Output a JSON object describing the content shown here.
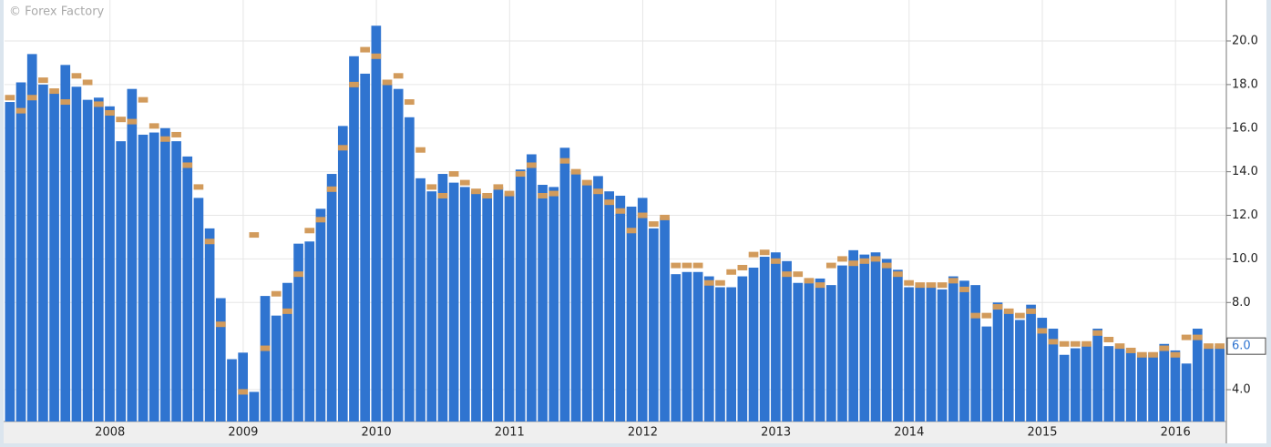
{
  "chart_data": {
    "type": "bar",
    "watermark": "© Forex Factory",
    "categories": [
      null,
      null,
      null,
      null,
      null,
      null,
      null,
      null,
      null,
      "2008",
      null,
      null,
      null,
      null,
      null,
      null,
      null,
      null,
      null,
      null,
      null,
      "2009",
      null,
      null,
      null,
      null,
      null,
      null,
      null,
      null,
      null,
      null,
      null,
      "2010",
      null,
      null,
      null,
      null,
      null,
      null,
      null,
      null,
      null,
      null,
      null,
      "2011",
      null,
      null,
      null,
      null,
      null,
      null,
      null,
      null,
      null,
      null,
      null,
      "2012",
      null,
      null,
      null,
      null,
      null,
      null,
      null,
      null,
      null,
      null,
      null,
      "2013",
      null,
      null,
      null,
      null,
      null,
      null,
      null,
      null,
      null,
      null,
      null,
      "2014",
      null,
      null,
      null,
      null,
      null,
      null,
      null,
      null,
      null,
      null,
      null,
      "2015",
      null,
      null,
      null,
      null,
      null,
      null,
      null,
      null,
      null,
      null,
      null,
      "2016",
      null,
      null,
      null,
      null
    ],
    "series": [
      {
        "color": "#2f74d0",
        "values": [
          17.2,
          18.1,
          19.4,
          18.0,
          17.6,
          18.9,
          17.9,
          17.3,
          17.4,
          17.0,
          15.4,
          17.8,
          15.7,
          15.8,
          16.0,
          15.4,
          14.7,
          12.8,
          11.4,
          8.2,
          5.4,
          5.7,
          3.9,
          8.3,
          7.4,
          8.9,
          10.7,
          10.8,
          12.3,
          13.9,
          16.1,
          19.3,
          18.5,
          20.7,
          18.0,
          17.8,
          16.5,
          13.7,
          13.1,
          13.9,
          13.5,
          13.3,
          13.1,
          12.9,
          13.3,
          13.0,
          14.1,
          14.8,
          13.4,
          13.3,
          15.1,
          14.0,
          13.6,
          13.8,
          13.1,
          12.9,
          12.4,
          12.8,
          11.4,
          11.9,
          9.3,
          9.4,
          9.4,
          9.2,
          8.7,
          8.7,
          9.2,
          9.6,
          10.1,
          10.3,
          9.9,
          8.9,
          9.1,
          9.1,
          8.8,
          9.7,
          10.4,
          10.2,
          10.3,
          10.0,
          9.5,
          8.7,
          8.8,
          8.7,
          8.6,
          9.2,
          9.0,
          8.8,
          6.9,
          8.0,
          7.6,
          7.2,
          7.9,
          7.3,
          6.8,
          5.6,
          5.9,
          6.1,
          6.8,
          6.0,
          5.9,
          5.8,
          5.6,
          5.7,
          6.1,
          5.8,
          5.2,
          6.8,
          5.9,
          6.0
        ]
      },
      {
        "color": "#d29b5c",
        "marker": true,
        "values": [
          17.4,
          16.8,
          17.4,
          18.2,
          17.7,
          17.2,
          18.4,
          18.1,
          17.1,
          16.7,
          16.4,
          16.3,
          17.3,
          16.1,
          15.5,
          15.7,
          14.3,
          13.3,
          10.8,
          7.0,
          null,
          3.9,
          11.1,
          5.9,
          8.4,
          7.6,
          9.3,
          11.3,
          11.8,
          13.2,
          15.1,
          18.0,
          19.6,
          19.3,
          18.1,
          18.4,
          17.2,
          15.0,
          13.3,
          12.9,
          13.9,
          13.5,
          13.1,
          12.9,
          13.3,
          13.0,
          13.9,
          14.3,
          12.9,
          13.0,
          14.5,
          14.0,
          13.5,
          13.1,
          12.6,
          12.2,
          11.3,
          12.0,
          11.6,
          11.9,
          9.7,
          9.7,
          9.7,
          8.9,
          8.9,
          9.4,
          9.6,
          10.2,
          10.3,
          9.9,
          9.3,
          9.3,
          9.0,
          8.8,
          9.7,
          10.0,
          9.8,
          9.9,
          10.0,
          9.7,
          9.3,
          8.9,
          8.8,
          8.8,
          8.8,
          9.0,
          8.6,
          7.4,
          7.4,
          7.8,
          7.6,
          7.4,
          7.6,
          6.7,
          6.2,
          6.1,
          6.1,
          6.1,
          6.6,
          6.3,
          6.0,
          5.8,
          5.6,
          5.6,
          5.9,
          5.6,
          6.4,
          6.4,
          6.0,
          6.0
        ]
      }
    ],
    "ylim": [
      2.54,
      21.88
    ],
    "yticks": [
      {
        "value": 4,
        "label": "4.0"
      },
      {
        "value": 8,
        "label": "8.0"
      },
      {
        "value": 10,
        "label": "10.0"
      },
      {
        "value": 12,
        "label": "12.0"
      },
      {
        "value": 14,
        "label": "14.0"
      },
      {
        "value": 16,
        "label": "16.0"
      },
      {
        "value": 18,
        "label": "18.0"
      },
      {
        "value": 20,
        "label": "20.0"
      }
    ],
    "current_value": {
      "value": 6.0,
      "label": "6.0"
    },
    "grid": true
  }
}
